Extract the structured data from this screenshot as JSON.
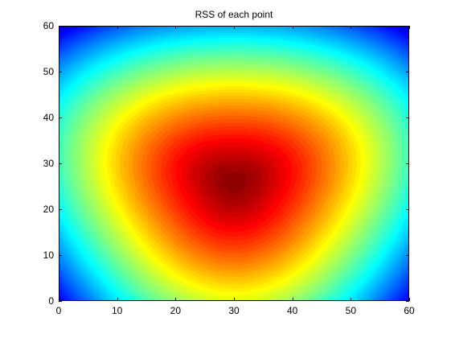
{
  "chart_data": {
    "type": "heatmap",
    "title": "RSS of each point",
    "xlabel": "",
    "ylabel": "",
    "xlim": [
      0,
      60
    ],
    "ylim": [
      0,
      60
    ],
    "x_ticks": [
      0,
      10,
      20,
      30,
      40,
      50,
      60
    ],
    "y_ticks": [
      0,
      10,
      20,
      30,
      40,
      50,
      60
    ],
    "colormap": "jet",
    "grid": false,
    "value_range": [
      0,
      1
    ],
    "peak": {
      "x": 30,
      "y": 26,
      "value": 1.0
    },
    "iso_contours": [
      {
        "level": "dark-red core",
        "approx_extent": {
          "x": [
            22,
            38
          ],
          "y": [
            20,
            38
          ]
        }
      },
      {
        "level": "red",
        "approx_extent": {
          "x": [
            16,
            45
          ],
          "y": [
            14,
            41
          ]
        }
      },
      {
        "level": "yellow",
        "approx_extent": {
          "x": [
            10,
            51
          ],
          "y": [
            9,
            47
          ]
        }
      },
      {
        "level": "cyan",
        "approx_extent": {
          "x": [
            3,
            58
          ],
          "y": [
            3,
            55
          ]
        }
      },
      {
        "level": "blue corners",
        "approx_extent": {
          "x": [
            0,
            60
          ],
          "y": [
            0,
            60
          ]
        }
      }
    ]
  }
}
